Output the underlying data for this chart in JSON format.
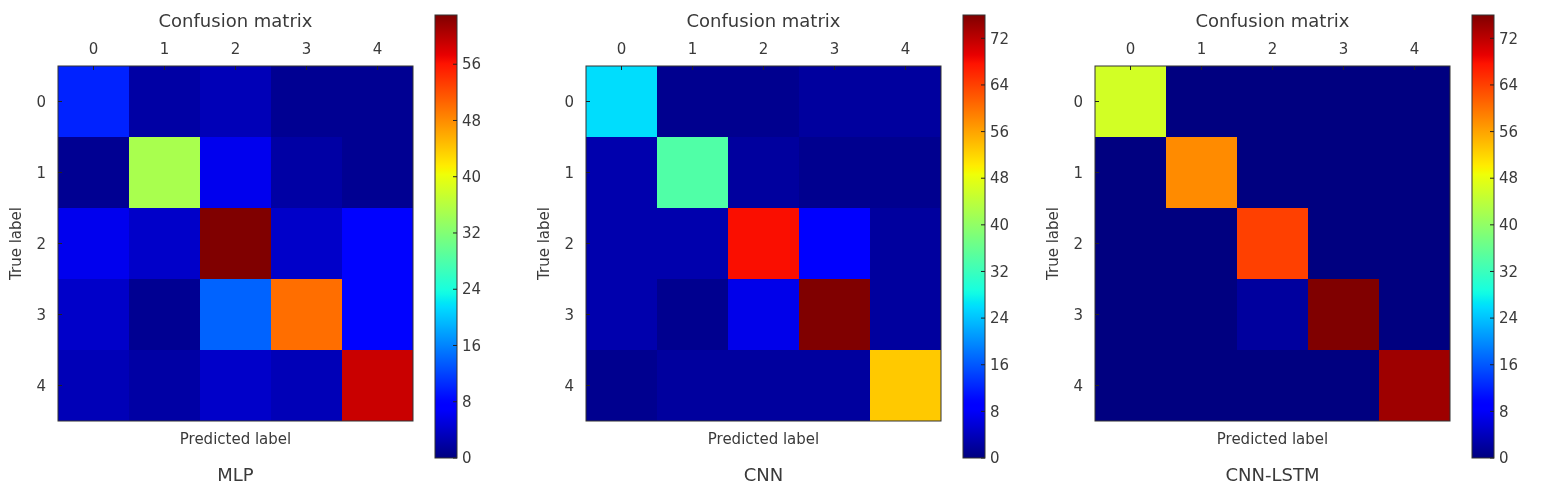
{
  "chart_data": [
    {
      "type": "heatmap",
      "title": "Confusion matrix",
      "xlabel": "Predicted label",
      "ylabel": "True label",
      "annotations": [
        "MLP"
      ],
      "categories": [
        "0",
        "1",
        "2",
        "3",
        "4"
      ],
      "y_categories": [
        "0",
        "1",
        "2",
        "3",
        "4"
      ],
      "cells": [
        [
          10,
          2,
          3,
          1,
          1
        ],
        [
          1,
          35,
          6,
          2,
          1
        ],
        [
          6,
          4,
          63,
          4,
          8
        ],
        [
          4,
          1,
          14,
          50,
          8
        ],
        [
          3,
          2,
          4,
          3,
          59
        ]
      ],
      "clim": [
        0,
        63
      ],
      "cticks": [
        0,
        8,
        16,
        24,
        32,
        40,
        48,
        56
      ]
    },
    {
      "type": "heatmap",
      "title": "Confusion matrix",
      "xlabel": "Predicted label",
      "ylabel": "True label",
      "annotations": [
        "CNN"
      ],
      "categories": [
        "0",
        "1",
        "2",
        "3",
        "4"
      ],
      "y_categories": [
        "0",
        "1",
        "2",
        "3",
        "4"
      ],
      "cells": [
        [
          26,
          1,
          1,
          2,
          2
        ],
        [
          3,
          34,
          2,
          1,
          1
        ],
        [
          3,
          3,
          68,
          9,
          2
        ],
        [
          3,
          1,
          7,
          76,
          2
        ],
        [
          1,
          2,
          2,
          2,
          53
        ]
      ],
      "clim": [
        0,
        76
      ],
      "cticks": [
        0,
        8,
        16,
        24,
        32,
        40,
        48,
        56,
        64,
        72
      ]
    },
    {
      "type": "heatmap",
      "title": "Confusion matrix",
      "xlabel": "Predicted label",
      "ylabel": "True label",
      "annotations": [
        "CNN-LSTM"
      ],
      "categories": [
        "0",
        "1",
        "2",
        "3",
        "4"
      ],
      "y_categories": [
        "0",
        "1",
        "2",
        "3",
        "4"
      ],
      "cells": [
        [
          46,
          0,
          0,
          0,
          0
        ],
        [
          0,
          58,
          0,
          0,
          0
        ],
        [
          0,
          0,
          64,
          0,
          0
        ],
        [
          0,
          0,
          2,
          76,
          0
        ],
        [
          0,
          0,
          0,
          0,
          74
        ]
      ],
      "clim": [
        0,
        76
      ],
      "cticks": [
        0,
        8,
        16,
        24,
        32,
        40,
        48,
        56,
        64,
        72
      ]
    }
  ]
}
